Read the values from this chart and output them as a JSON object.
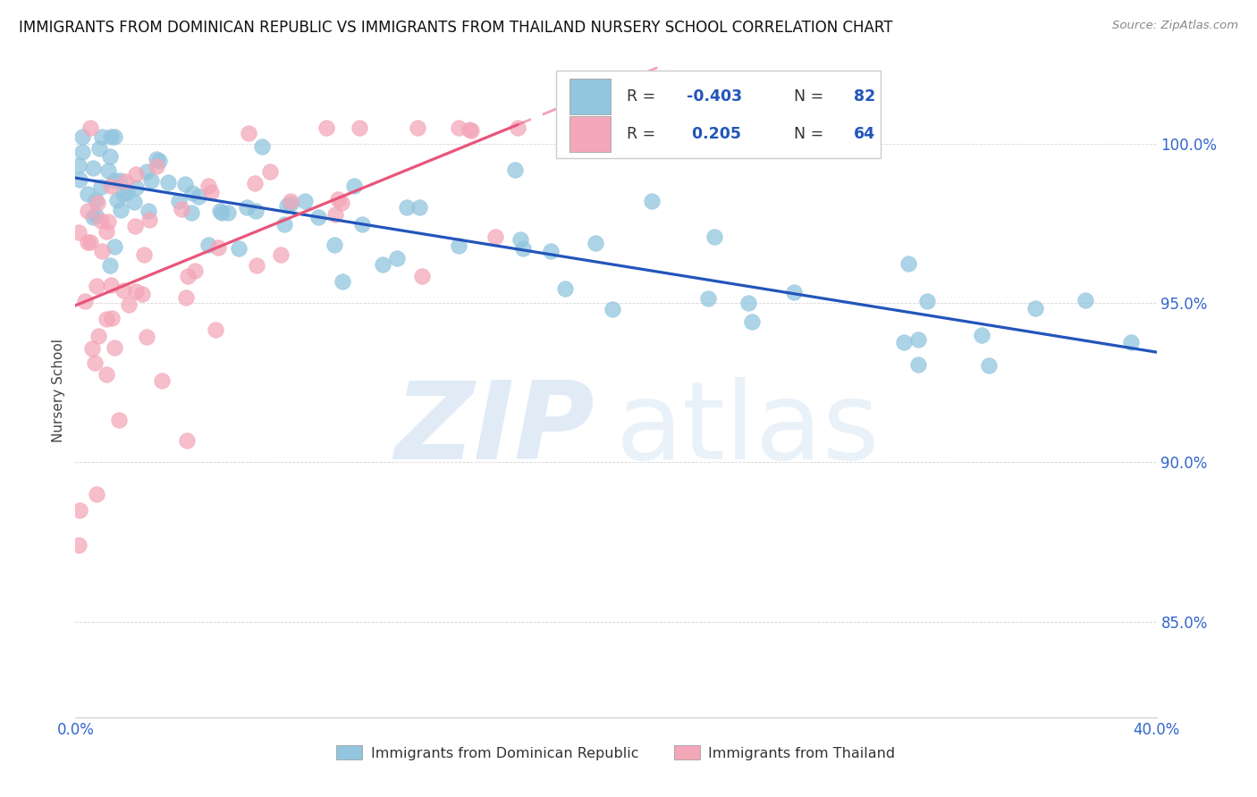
{
  "title": "IMMIGRANTS FROM DOMINICAN REPUBLIC VS IMMIGRANTS FROM THAILAND NURSERY SCHOOL CORRELATION CHART",
  "source": "Source: ZipAtlas.com",
  "ylabel": "Nursery School",
  "y_tick_vals": [
    0.85,
    0.9,
    0.95,
    1.0
  ],
  "xlim": [
    0.0,
    0.4
  ],
  "ylim": [
    0.82,
    1.025
  ],
  "blue_color": "#92C5DE",
  "pink_color": "#F4A7B9",
  "blue_line_color": "#2255BB",
  "pink_line_color": "#E8557A",
  "legend_blue_r": "-0.403",
  "legend_blue_n": "82",
  "legend_pink_r": "0.205",
  "legend_pink_n": "64",
  "blue_r": -0.403,
  "pink_r": 0.205,
  "blue_n": 82,
  "pink_n": 64,
  "blue_seed": 42,
  "pink_seed": 99,
  "watermark_zip": "ZIP",
  "watermark_atlas": "atlas"
}
